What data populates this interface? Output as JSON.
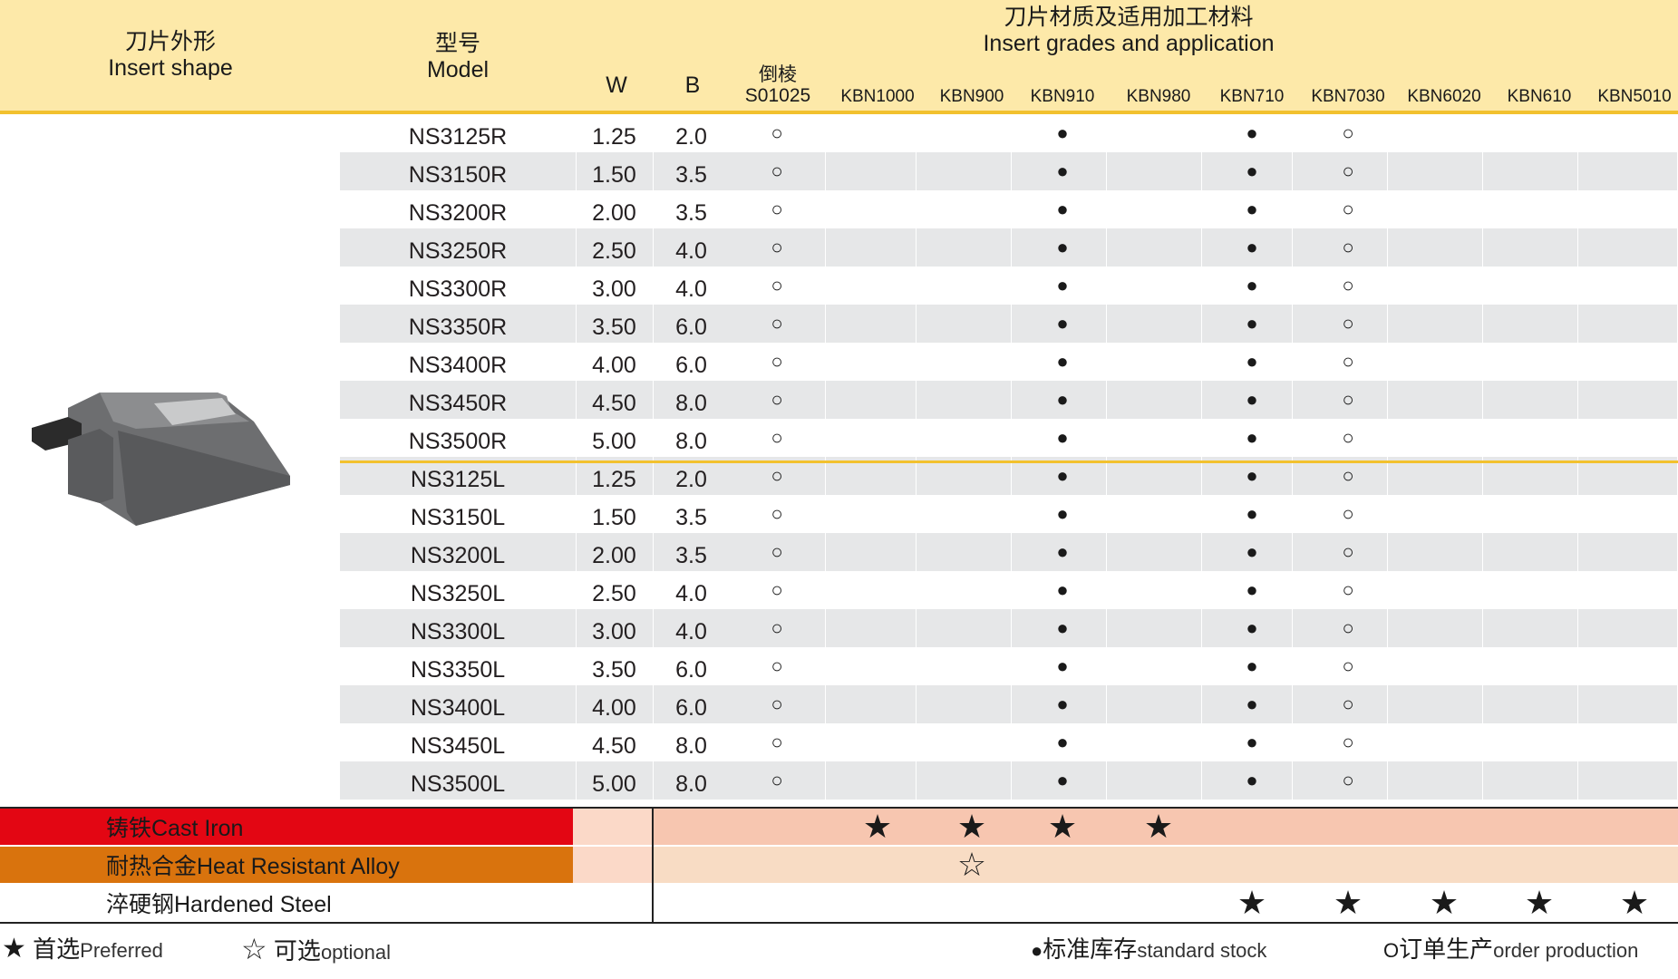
{
  "header": {
    "shape_cn": "刀片外形",
    "shape_en": "Insert shape",
    "model_cn": "型号",
    "model_en": "Model",
    "w_label": "W",
    "b_label": "B",
    "chamfer_cn": "倒棱",
    "chamfer_code": "S01025",
    "grades_cn": "刀片材质及适用加工材料",
    "grades_en": "Insert grades and application",
    "grades": [
      "KBN1000",
      "KBN900",
      "KBN910",
      "KBN980",
      "KBN710",
      "KBN7030",
      "KBN6020",
      "KBN610",
      "KBN5010"
    ]
  },
  "rows": [
    {
      "model": "NS3125R",
      "w": "1.25",
      "b": "2.0"
    },
    {
      "model": "NS3150R",
      "w": "1.50",
      "b": "3.5"
    },
    {
      "model": "NS3200R",
      "w": "2.00",
      "b": "3.5"
    },
    {
      "model": "NS3250R",
      "w": "2.50",
      "b": "4.0"
    },
    {
      "model": "NS3300R",
      "w": "3.00",
      "b": "4.0"
    },
    {
      "model": "NS3350R",
      "w": "3.50",
      "b": "6.0"
    },
    {
      "model": "NS3400R",
      "w": "4.00",
      "b": "6.0"
    },
    {
      "model": "NS3450R",
      "w": "4.50",
      "b": "8.0"
    },
    {
      "model": "NS3500R",
      "w": "5.00",
      "b": "8.0"
    },
    {
      "model": "NS3125L",
      "w": "1.25",
      "b": "2.0"
    },
    {
      "model": "NS3150L",
      "w": "1.50",
      "b": "3.5"
    },
    {
      "model": "NS3200L",
      "w": "2.00",
      "b": "3.5"
    },
    {
      "model": "NS3250L",
      "w": "2.50",
      "b": "4.0"
    },
    {
      "model": "NS3300L",
      "w": "3.00",
      "b": "4.0"
    },
    {
      "model": "NS3350L",
      "w": "3.50",
      "b": "6.0"
    },
    {
      "model": "NS3400L",
      "w": "4.00",
      "b": "6.0"
    },
    {
      "model": "NS3450L",
      "w": "4.50",
      "b": "8.0"
    },
    {
      "model": "NS3500L",
      "w": "5.00",
      "b": "8.0"
    }
  ],
  "row_symbols": {
    "chamfer": "○",
    "KBN910": "●",
    "KBN710": "●",
    "KBN7030": "○"
  },
  "applications": [
    {
      "label": "铸铁Cast Iron",
      "color": "#e30613",
      "bg": "#f7c6b0",
      "marks": {
        "KBN1000": "★",
        "KBN900": "★",
        "KBN910": "★",
        "KBN980": "★"
      }
    },
    {
      "label": "耐热合金Heat Resistant Alloy",
      "color": "#d9730d",
      "bg": "#f8dcc4",
      "marks": {
        "KBN900": "☆"
      }
    },
    {
      "label": "淬硬钢Hardened Steel",
      "color": "#ffffff",
      "bg": "#ffffff",
      "marks": {
        "KBN710": "★",
        "KBN7030": "★",
        "KBN6020": "★",
        "KBN610": "★",
        "KBN5010": "★"
      }
    }
  ],
  "legend": {
    "preferred_symbol": "★",
    "preferred_cn": "首选",
    "preferred_en": "Preferred",
    "optional_symbol": "☆",
    "optional_cn": "可选",
    "optional_en": "optional",
    "stock_symbol": "●",
    "stock_cn": "标准库存",
    "stock_en": "standard stock",
    "order_symbol": "O",
    "order_cn": "订单生产",
    "order_en": "order production"
  }
}
